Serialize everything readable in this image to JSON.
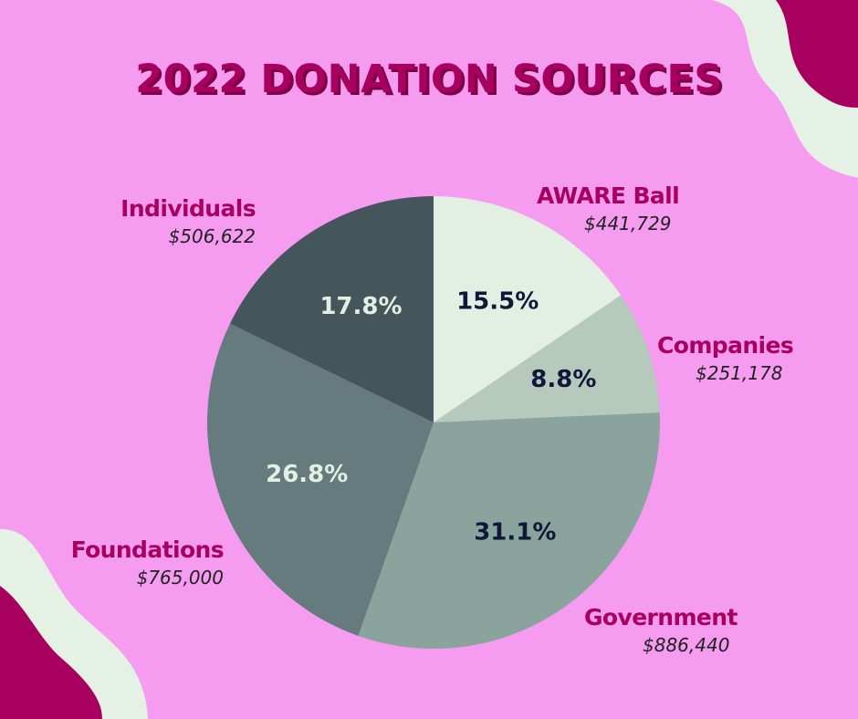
{
  "title": "2022 DONATION SOURCES",
  "colors": {
    "background": "#f59cf0",
    "title": "#a8005e",
    "wave_light": "#e6f1e6",
    "wave_dark": "#a8005e"
  },
  "chart_data": {
    "type": "pie",
    "title": "2022 DONATION SOURCES",
    "slices": [
      {
        "label": "AWARE Ball",
        "amount": "$441,729",
        "percent_label": "15.5%",
        "value": 15.5,
        "color": "#e2efe2",
        "label_color": "#0f1838"
      },
      {
        "label": "Companies",
        "amount": "$251,178",
        "percent_label": "8.8%",
        "value": 8.8,
        "color": "#b6c9bd",
        "label_color": "#0f1838"
      },
      {
        "label": "Government",
        "amount": "$886,440",
        "percent_label": "31.1%",
        "value": 31.1,
        "color": "#8ba39d",
        "label_color": "#0f1838"
      },
      {
        "label": "Foundations",
        "amount": "$765,000",
        "percent_label": "26.8%",
        "value": 26.8,
        "color": "#667b7d",
        "label_color": "#e2efe2"
      },
      {
        "label": "Individuals",
        "amount": "$506,622",
        "percent_label": "17.8%",
        "value": 17.8,
        "color": "#45555c",
        "label_color": "#e2efe2"
      }
    ]
  }
}
